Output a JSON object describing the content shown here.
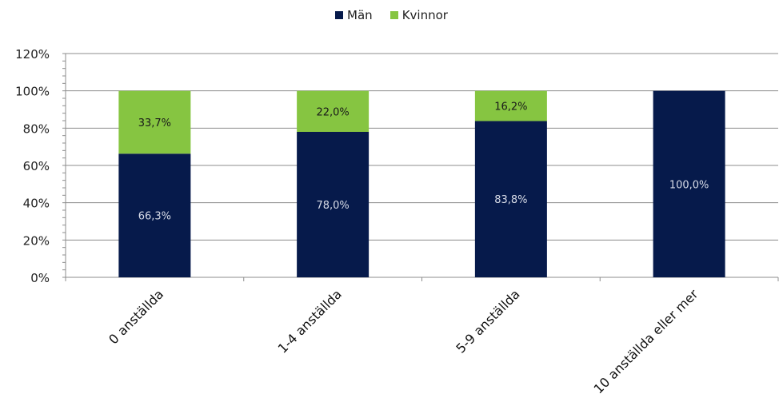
{
  "chart_data": {
    "type": "bar",
    "stacked": true,
    "categories": [
      "0 anställda",
      "1-4 anställda",
      "5-9 anställda",
      "10 anställda eller mer"
    ],
    "series": [
      {
        "name": "Män",
        "color": "#061a4b",
        "values": [
          66.3,
          78.0,
          83.8,
          100.0
        ],
        "labels": [
          "66,3%",
          "78,0%",
          "83,8%",
          "100,0%"
        ]
      },
      {
        "name": "Kvinnor",
        "color": "#86c541",
        "values": [
          33.7,
          22.0,
          16.2,
          0
        ],
        "labels": [
          "33,7%",
          "22,0%",
          "16,2%",
          ""
        ]
      }
    ],
    "ylim": [
      0,
      120
    ],
    "yticks": [
      0,
      20,
      40,
      60,
      80,
      100,
      120
    ],
    "ytick_labels": [
      "0%",
      "20%",
      "40%",
      "60%",
      "80%",
      "100%",
      "120%"
    ],
    "grid": true,
    "legend_position": "top-center",
    "xlabel": "",
    "ylabel": ""
  }
}
